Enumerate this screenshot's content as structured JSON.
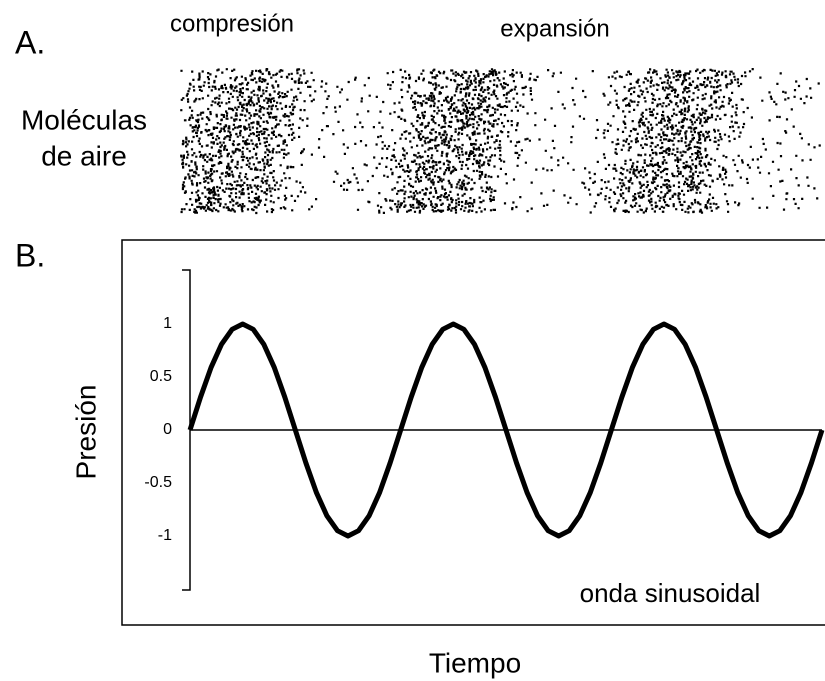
{
  "panel_a": {
    "label": "A.",
    "compression_label": "compresión",
    "expansion_label": "expansión",
    "molecules_label": [
      "Moléculas",
      "de aire"
    ]
  },
  "chart_data": {
    "type": "line",
    "panel_label": "B.",
    "ylabel": "Presión",
    "xlabel": "Tiempo",
    "annotation": "onda sinusoidal",
    "x": [
      0,
      0.05,
      0.1,
      0.15,
      0.2,
      0.25,
      0.3,
      0.35,
      0.4,
      0.45,
      0.5,
      0.55,
      0.6,
      0.65,
      0.7,
      0.75,
      0.8,
      0.85,
      0.9,
      0.95,
      1,
      1.05,
      1.1,
      1.15,
      1.2,
      1.25,
      1.3,
      1.35,
      1.4,
      1.45,
      1.5,
      1.55,
      1.6,
      1.65,
      1.7,
      1.75,
      1.8,
      1.85,
      1.9,
      1.95,
      2,
      2.05,
      2.1,
      2.15,
      2.2,
      2.25,
      2.3,
      2.35,
      2.4,
      2.45,
      2.5,
      2.55,
      2.6,
      2.65,
      2.7,
      2.75,
      2.8,
      2.85,
      2.9,
      2.95,
      3
    ],
    "series": [
      {
        "name": null,
        "color": "#000000",
        "values": [
          0,
          0.31,
          0.59,
          0.81,
          0.95,
          1,
          0.95,
          0.81,
          0.59,
          0.31,
          0,
          -0.31,
          -0.59,
          -0.81,
          -0.95,
          -1,
          -0.95,
          -0.81,
          -0.59,
          -0.31,
          0,
          0.31,
          0.59,
          0.81,
          0.95,
          1,
          0.95,
          0.81,
          0.59,
          0.31,
          0,
          -0.31,
          -0.59,
          -0.81,
          -0.95,
          -1,
          -0.95,
          -0.81,
          -0.59,
          -0.31,
          0,
          0.31,
          0.59,
          0.81,
          0.95,
          1,
          0.95,
          0.81,
          0.59,
          0.31,
          0,
          -0.31,
          -0.59,
          -0.81,
          -0.95,
          -1,
          -0.95,
          -0.81,
          -0.59,
          -0.31,
          0
        ]
      }
    ],
    "xlim": [
      0,
      3
    ],
    "ylim": [
      -1.5,
      1.5
    ],
    "yticks": [
      -1,
      -0.5,
      0,
      0.5,
      1
    ]
  }
}
